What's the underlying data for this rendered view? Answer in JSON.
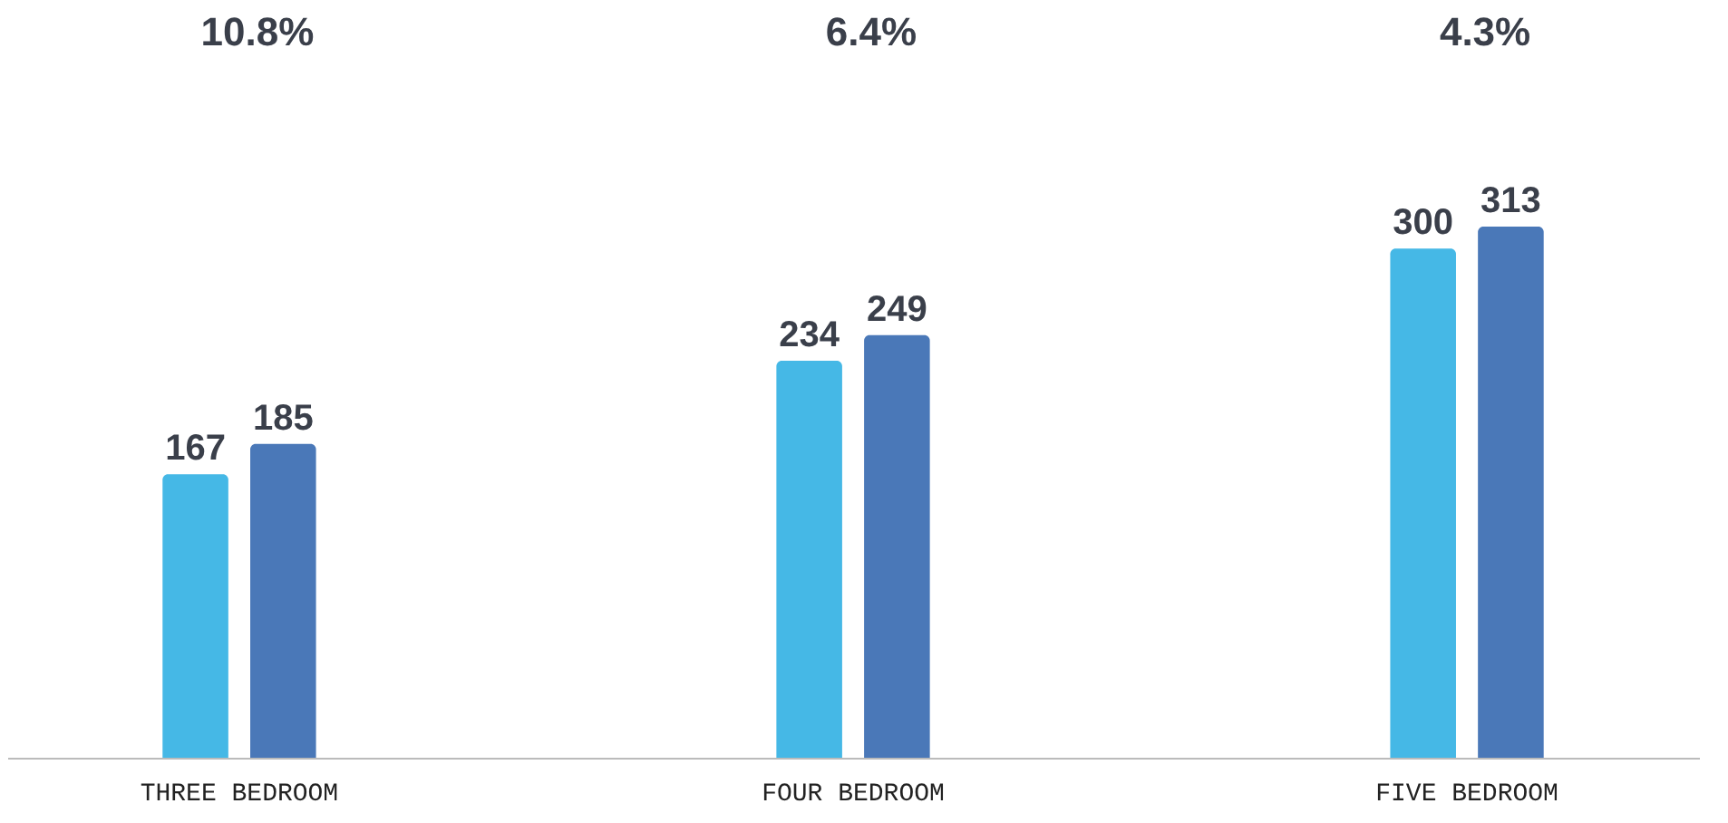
{
  "chart_data": {
    "type": "bar",
    "categories": [
      "THREE BEDROOM",
      "FOUR BEDROOM",
      "FIVE BEDROOM"
    ],
    "series": [
      {
        "color": "#45b8e6",
        "values": [
          167,
          234,
          300
        ]
      },
      {
        "color": "#4a78b8",
        "values": [
          185,
          249,
          313
        ]
      }
    ],
    "data_labels": true,
    "tick_labels": "x",
    "grid": false,
    "annotations": [
      "10.8%",
      "6.4%",
      "4.3%"
    ]
  }
}
